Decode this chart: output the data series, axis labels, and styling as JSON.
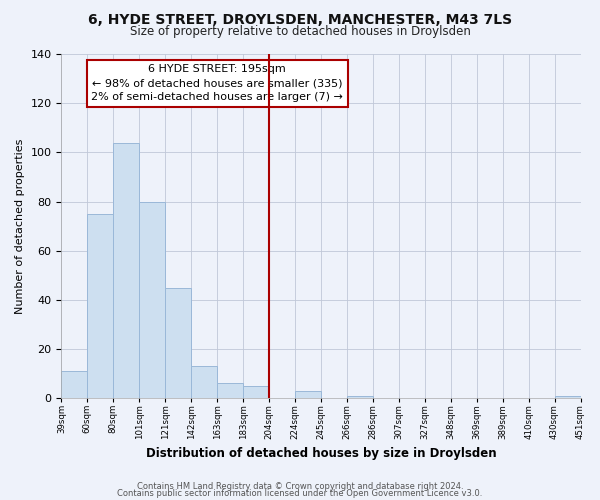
{
  "title": "6, HYDE STREET, DROYLSDEN, MANCHESTER, M43 7LS",
  "subtitle": "Size of property relative to detached houses in Droylsden",
  "xlabel": "Distribution of detached houses by size in Droylsden",
  "ylabel": "Number of detached properties",
  "bins": [
    "39sqm",
    "60sqm",
    "80sqm",
    "101sqm",
    "121sqm",
    "142sqm",
    "163sqm",
    "183sqm",
    "204sqm",
    "224sqm",
    "245sqm",
    "266sqm",
    "286sqm",
    "307sqm",
    "327sqm",
    "348sqm",
    "369sqm",
    "389sqm",
    "410sqm",
    "430sqm",
    "451sqm"
  ],
  "values": [
    11,
    75,
    104,
    80,
    45,
    13,
    6,
    5,
    0,
    3,
    0,
    1,
    0,
    0,
    0,
    0,
    0,
    0,
    0,
    1
  ],
  "bar_color": "#cddff0",
  "bar_edge_color": "#9ab8d8",
  "vline_color": "#aa0000",
  "annotation_title": "6 HYDE STREET: 195sqm",
  "annotation_line1": "← 98% of detached houses are smaller (335)",
  "annotation_line2": "2% of semi-detached houses are larger (7) →",
  "annotation_box_color": "#ffffff",
  "annotation_box_edge": "#aa0000",
  "footer1": "Contains HM Land Registry data © Crown copyright and database right 2024.",
  "footer2": "Contains public sector information licensed under the Open Government Licence v3.0.",
  "ylim": [
    0,
    140
  ],
  "yticks": [
    0,
    20,
    40,
    60,
    80,
    100,
    120,
    140
  ],
  "bg_color": "#eef2fa"
}
